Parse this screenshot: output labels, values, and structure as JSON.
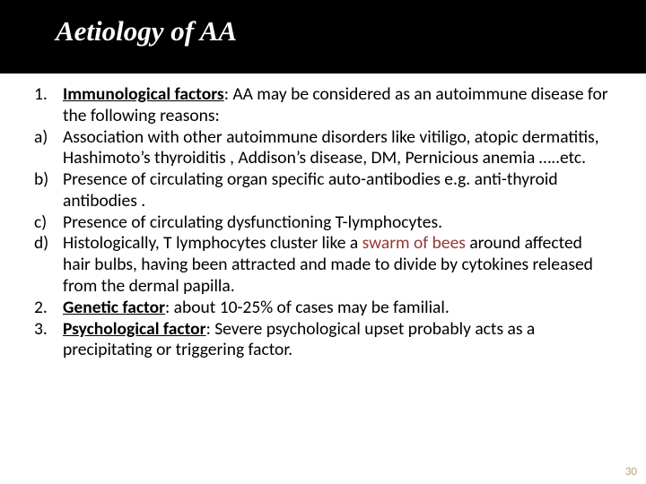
{
  "title": "Aetiology of AA",
  "colors": {
    "slide_bg": "#000000",
    "body_bg": "#ffffff",
    "title_color": "#ffffff",
    "text_color": "#000000",
    "highlight_color": "#953734",
    "pagenum_color": "#b9a56e"
  },
  "typography": {
    "title_font": "Georgia, serif",
    "title_fontsize_pt": 23,
    "title_italic": true,
    "body_font": "Calibri, Segoe UI, sans-serif",
    "body_fontsize_pt": 15
  },
  "items": [
    {
      "marker": "1.",
      "lead_bold_underline": "Immunological factors",
      "lead_after": ": AA may be considered as an autoimmune disease for the following reasons:"
    },
    {
      "marker": "a)",
      "text": "Association with other autoimmune disorders like  vitiligo, atopic dermatitis, Hashimoto’s thyroiditis , Addison’s disease, DM, Pernicious anemia …..etc."
    },
    {
      "marker": "b)",
      "text": "Presence of circulating organ specific auto-antibodies e.g. anti-thyroid antibodies ."
    },
    {
      "marker": "c)",
      "text": "Presence of circulating dysfunctioning T-lymphocytes."
    },
    {
      "marker": "d)",
      "pre": "Histologically, T lymphocytes cluster like a ",
      "highlight": "swarm of bees",
      "post": " around affected hair bulbs, having been attracted and made to divide by cytokines released from the dermal papilla."
    },
    {
      "marker": "2.",
      "lead_bold_underline": "Genetic factor",
      "lead_after": ": about 10-25% of cases may be familial."
    },
    {
      "marker": "3.",
      "lead_bold_underline": "Psychological factor",
      "lead_after": ": Severe psychological upset probably acts as a precipitating or triggering factor."
    }
  ],
  "page_number": "30"
}
